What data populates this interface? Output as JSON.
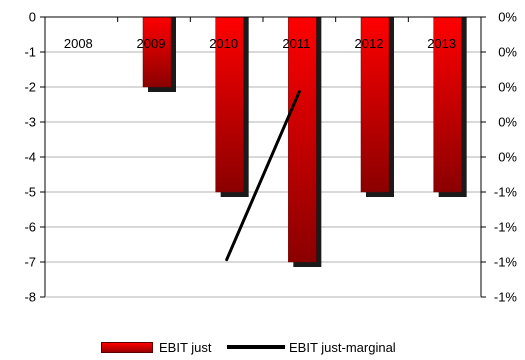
{
  "chart_data": {
    "type": "bar",
    "categories": [
      "2008",
      "2009",
      "2010",
      "2011",
      "2012",
      "2013"
    ],
    "series": [
      {
        "name": "EBIT just",
        "type": "bar",
        "axis": "left",
        "values": [
          0,
          -2,
          -5,
          -7,
          -5,
          -5
        ],
        "color_top": "#ff0000",
        "color_bottom": "#8b0000"
      },
      {
        "name": "EBIT just-marginal",
        "type": "line",
        "axis": "right",
        "x": [
          "2010",
          "2011"
        ],
        "values": [
          -1.3,
          -0.4
        ],
        "color": "#000000"
      }
    ],
    "left_axis": {
      "ylim": [
        -8,
        0
      ],
      "ticks": [
        "0",
        "-1",
        "-2",
        "-3",
        "-4",
        "-5",
        "-6",
        "-7",
        "-8"
      ]
    },
    "right_axis": {
      "ticks": [
        "0%",
        "0%",
        "0%",
        "0%",
        "0%",
        "-1%",
        "-1%",
        "-1%",
        "-1%"
      ]
    },
    "grid": true,
    "legend_position": "bottom"
  }
}
